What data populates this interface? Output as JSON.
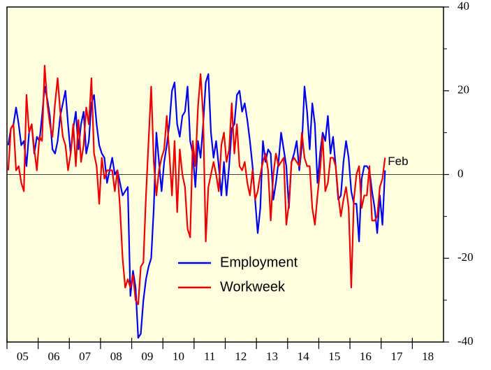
{
  "chart_data": {
    "type": "line",
    "categories": [
      null,
      null,
      null,
      null,
      null,
      null,
      "05",
      null,
      null,
      null,
      null,
      null,
      null,
      null,
      null,
      null,
      null,
      null,
      "06",
      null,
      null,
      null,
      null,
      null,
      null,
      null,
      null,
      null,
      null,
      null,
      "07",
      null,
      null,
      null,
      null,
      null,
      null,
      null,
      null,
      null,
      null,
      null,
      "08",
      null,
      null,
      null,
      null,
      null,
      null,
      null,
      null,
      null,
      null,
      null,
      "09",
      null,
      null,
      null,
      null,
      null,
      null,
      null,
      null,
      null,
      null,
      null,
      "10",
      null,
      null,
      null,
      null,
      null,
      null,
      null,
      null,
      null,
      null,
      null,
      "11",
      null,
      null,
      null,
      null,
      null,
      null,
      null,
      null,
      null,
      null,
      null,
      "12",
      null,
      null,
      null,
      null,
      null,
      null,
      null,
      null,
      null,
      null,
      null,
      "13",
      null,
      null,
      null,
      null,
      null,
      null,
      null,
      null,
      null,
      null,
      null,
      "14",
      null,
      null,
      null,
      null,
      null,
      null,
      null,
      null,
      null,
      null,
      null,
      "15",
      null,
      null,
      null,
      null,
      null,
      null,
      null,
      null,
      null,
      null,
      null,
      "16",
      null,
      null,
      null,
      null,
      null,
      null,
      null,
      null,
      null,
      null,
      null,
      "17",
      null,
      null,
      null,
      null,
      null,
      null,
      null,
      null,
      null,
      null,
      null,
      "18",
      null,
      null,
      null,
      null,
      null
    ],
    "series": [
      {
        "name": "Employment",
        "color": "#0000ee",
        "values": [
          7,
          11,
          12,
          16,
          12,
          7,
          8,
          2,
          10,
          12,
          5,
          9,
          8,
          14,
          21,
          18,
          14,
          6,
          5,
          8,
          14,
          17,
          20,
          12,
          5,
          11,
          15,
          6,
          12,
          15,
          5,
          8,
          17,
          19,
          12,
          7,
          5,
          4,
          -2,
          1,
          4,
          0,
          1,
          -2,
          -5,
          -4,
          -3,
          -29,
          -23,
          -27,
          -39,
          -38,
          -30,
          -25,
          -22,
          -20,
          -8,
          10,
          3,
          -4,
          3,
          7,
          12,
          20,
          22,
          12,
          9,
          14,
          15,
          21,
          8,
          5,
          -3,
          8,
          4,
          12,
          22,
          24,
          10,
          4,
          8,
          2,
          -5,
          3,
          -5,
          2,
          11,
          12,
          19,
          20,
          15,
          17,
          13,
          8,
          2,
          -6,
          -14,
          -8,
          8,
          3,
          6,
          5,
          -6,
          -2,
          3,
          10,
          6,
          2,
          -8,
          3,
          5,
          8,
          1,
          7,
          21,
          15,
          6,
          17,
          12,
          -2,
          5,
          10,
          8,
          14,
          5,
          9,
          2,
          -6,
          -5,
          3,
          8,
          4,
          -4,
          -7,
          -7,
          -16,
          -1,
          2,
          2,
          1,
          -4,
          -8,
          -14,
          -5,
          -12,
          1,
          null,
          null,
          null,
          null,
          null,
          null,
          null,
          null,
          null,
          null,
          null,
          null,
          null,
          null,
          null,
          null,
          null,
          null,
          null,
          null,
          null,
          null
        ]
      },
      {
        "name": "Workweek",
        "color": "#ee0000",
        "values": [
          1,
          11,
          12,
          1,
          2,
          -2,
          -4,
          19,
          10,
          12,
          6,
          1,
          9,
          8,
          26,
          17,
          12,
          9,
          17,
          23,
          15,
          9,
          7,
          1,
          5,
          12,
          2,
          13,
          3,
          7,
          16,
          12,
          23,
          5,
          2,
          -7,
          4,
          -1,
          1,
          1,
          1,
          -4,
          1,
          -8,
          -20,
          -27,
          -25,
          -27,
          -24,
          -30,
          -31,
          -22,
          -21,
          -5,
          8,
          21,
          3,
          -5,
          1,
          4,
          6,
          14,
          5,
          -5,
          8,
          -9,
          6,
          0,
          -3,
          -13,
          -15,
          8,
          2,
          16,
          24,
          14,
          -16,
          -3,
          0,
          3,
          0,
          -4,
          7,
          10,
          3,
          6,
          17,
          5,
          12,
          2,
          1,
          3,
          -2,
          -5,
          1,
          -6,
          -4,
          0,
          3,
          5,
          1,
          -11,
          0,
          5,
          2,
          3,
          4,
          -12,
          -7,
          3,
          4,
          3,
          2,
          10,
          4,
          2,
          2,
          -8,
          -12,
          -5,
          1,
          9,
          -4,
          -2,
          4,
          4,
          2,
          -5,
          -10,
          -6,
          -3,
          -8,
          -27,
          -6,
          0,
          2,
          -8,
          -5,
          -5,
          2,
          -11,
          -11,
          -10,
          -3,
          -1,
          4,
          null,
          null,
          null,
          null,
          null,
          null,
          null,
          null,
          null,
          null,
          null,
          null,
          null,
          null,
          null,
          null,
          null,
          null,
          null,
          null,
          null,
          null
        ]
      }
    ],
    "ylim": [
      -40,
      40
    ],
    "yticks": [
      -40,
      -20,
      0,
      20,
      40
    ],
    "annotation": "Feb",
    "background": "#ffffe0",
    "grid": false,
    "legend": "inside"
  }
}
